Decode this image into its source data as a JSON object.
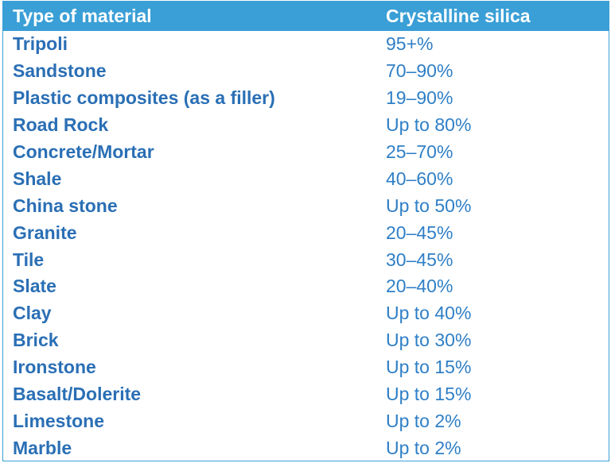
{
  "table": {
    "headers": [
      "Type of material",
      "Crystalline silica"
    ],
    "rows": [
      {
        "material": "Tripoli",
        "silica": "95+%"
      },
      {
        "material": "Sandstone",
        "silica": "70–90%"
      },
      {
        "material": "Plastic composites (as a filler)",
        "silica": "19–90%"
      },
      {
        "material": "Road Rock",
        "silica": "Up to 80%"
      },
      {
        "material": "Concrete/Mortar",
        "silica": "25–70%"
      },
      {
        "material": "Shale",
        "silica": "40–60%"
      },
      {
        "material": "China stone",
        "silica": "Up to 50%"
      },
      {
        "material": "Granite",
        "silica": "20–45%"
      },
      {
        "material": "Tile",
        "silica": "30–45%"
      },
      {
        "material": "Slate",
        "silica": "20–40%"
      },
      {
        "material": "Clay",
        "silica": "Up to 40%"
      },
      {
        "material": "Brick",
        "silica": "Up to 30%"
      },
      {
        "material": "Ironstone",
        "silica": "Up to 15%"
      },
      {
        "material": "Basalt/Dolerite",
        "silica": "Up to 15%"
      },
      {
        "material": "Limestone",
        "silica": "Up to 2%"
      },
      {
        "material": "Marble",
        "silica": "Up to 2%"
      }
    ]
  },
  "colors": {
    "header_bg": "#3a9fd6",
    "header_text": "#ffffff",
    "material_text": "#2a6fb5",
    "silica_text": "#2f7fc6"
  }
}
